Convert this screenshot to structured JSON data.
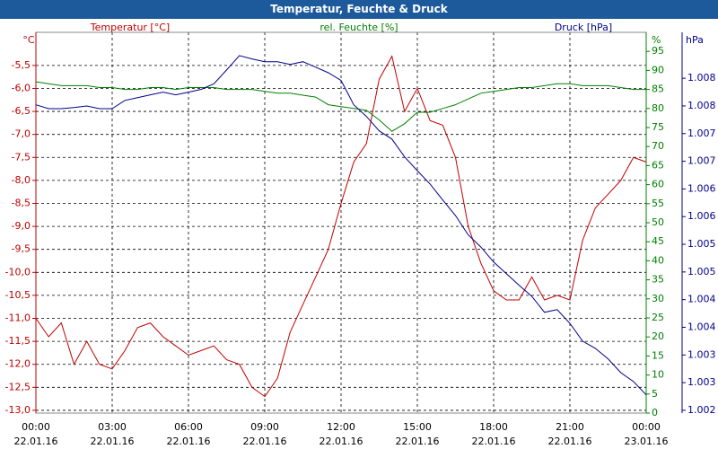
{
  "chart_data": {
    "type": "line",
    "title": "Temperatur, Feuchte & Druck",
    "x": [
      0,
      0.5,
      1,
      1.5,
      2,
      2.5,
      3,
      3.5,
      4,
      4.5,
      5,
      5.5,
      6,
      6.5,
      7,
      7.5,
      8,
      8.5,
      9,
      9.5,
      10,
      10.5,
      11,
      11.5,
      12,
      12.5,
      13,
      13.5,
      14,
      14.5,
      15,
      15.5,
      16,
      16.5,
      17,
      17.5,
      18,
      18.5,
      19,
      19.5,
      20,
      20.5,
      21,
      21.5,
      22,
      22.5,
      23,
      23.5,
      24
    ],
    "xlim": [
      0,
      24
    ],
    "xticks": [
      {
        "value": 0,
        "label": "00:00"
      },
      {
        "value": 3,
        "label": "03:00"
      },
      {
        "value": 6,
        "label": "06:00"
      },
      {
        "value": 9,
        "label": "09:00"
      },
      {
        "value": 12,
        "label": "12:00"
      },
      {
        "value": 15,
        "label": "15:00"
      },
      {
        "value": 18,
        "label": "18:00"
      },
      {
        "value": 21,
        "label": "21:00"
      },
      {
        "value": 24,
        "label": "00:00"
      }
    ],
    "xtick_dates": [
      "22.01.16",
      "22.01.16",
      "22.01.16",
      "22.01.16",
      "22.01.16",
      "22.01.16",
      "22.01.16",
      "22.01.16",
      "23.01.16"
    ],
    "series": [
      {
        "name": "Temperatur [°C]",
        "unit": "°C",
        "color": "#c00000",
        "axis": "y",
        "values": [
          -11.0,
          -11.4,
          -11.1,
          -12.0,
          -11.5,
          -12.0,
          -12.1,
          -11.7,
          -11.2,
          -11.1,
          -11.4,
          -11.6,
          -11.8,
          -11.7,
          -11.6,
          -11.9,
          -12.0,
          -12.5,
          -12.7,
          -12.3,
          -11.3,
          -10.7,
          -10.1,
          -9.5,
          -8.5,
          -7.6,
          -7.2,
          -5.8,
          -5.3,
          -6.5,
          -6.0,
          -6.7,
          -6.8,
          -7.5,
          -9.0,
          -9.8,
          -10.4,
          -10.6,
          -10.6,
          -10.1,
          -10.6,
          -10.5,
          -10.6,
          -9.3,
          -8.6,
          -8.3,
          -8.0,
          -7.5,
          -7.6
        ]
      },
      {
        "name": "rel. Feuchte [%]",
        "unit": "%",
        "color": "#008000",
        "axis": "y2",
        "values": [
          87,
          86.5,
          86,
          86,
          86,
          85.5,
          85.5,
          85,
          85,
          85.5,
          85.5,
          85,
          85.5,
          85.5,
          85.5,
          85,
          85,
          85,
          84.5,
          84,
          84,
          83.5,
          83,
          81,
          80.5,
          80,
          79.5,
          77,
          74,
          76,
          79,
          79,
          80,
          81,
          82.5,
          84,
          84.5,
          85,
          85.5,
          85.5,
          86,
          86.5,
          86.5,
          86,
          86,
          86,
          85.5,
          85,
          85
        ]
      },
      {
        "name": "Druck [hPa]",
        "unit": "hPa",
        "color": "#00008b",
        "axis": "y3",
        "values": [
          1007.52,
          1007.45,
          1007.45,
          1007.47,
          1007.5,
          1007.45,
          1007.45,
          1007.6,
          1007.65,
          1007.7,
          1007.75,
          1007.7,
          1007.75,
          1007.8,
          1007.9,
          1008.15,
          1008.41,
          1008.35,
          1008.3,
          1008.3,
          1008.25,
          1008.3,
          1008.2,
          1008.1,
          1007.96,
          1007.52,
          1007.31,
          1007.05,
          1006.9,
          1006.58,
          1006.33,
          1006.09,
          1005.8,
          1005.52,
          1005.17,
          1004.95,
          1004.68,
          1004.47,
          1004.26,
          1004.06,
          1003.77,
          1003.82,
          1003.57,
          1003.25,
          1003.12,
          1002.93,
          1002.68,
          1002.52,
          1002.28
        ]
      }
    ],
    "ylim": [
      -13.06,
      -4.78
    ],
    "yticks": [
      {
        "value": -5.5,
        "label": "-5,5"
      },
      {
        "value": -6,
        "label": "-6,0"
      },
      {
        "value": -6.5,
        "label": "-6,5"
      },
      {
        "value": -7,
        "label": "-7,0"
      },
      {
        "value": -7.5,
        "label": "-7,5"
      },
      {
        "value": -8,
        "label": "-8,0"
      },
      {
        "value": -8.5,
        "label": "-8,5"
      },
      {
        "value": -9,
        "label": "-9,0"
      },
      {
        "value": -9.5,
        "label": "-9,5"
      },
      {
        "value": -10,
        "label": "-10,0"
      },
      {
        "value": -10.5,
        "label": "-10,5"
      },
      {
        "value": -11,
        "label": "-11,0"
      },
      {
        "value": -11.5,
        "label": "-11,5"
      },
      {
        "value": -12,
        "label": "-12,0"
      },
      {
        "value": -12.5,
        "label": "-12,5"
      },
      {
        "value": -13,
        "label": "-13,0"
      }
    ],
    "y2lim": [
      0,
      100
    ],
    "y2ticks": [
      0,
      5,
      10,
      15,
      20,
      25,
      30,
      35,
      40,
      45,
      50,
      55,
      60,
      65,
      70,
      75,
      80,
      85,
      90,
      95
    ],
    "y3lim": [
      1001.95,
      1008.83
    ],
    "y3ticks": [
      {
        "value": 1002,
        "label": "1.002"
      },
      {
        "value": 1002.5,
        "label": "1.003"
      },
      {
        "value": 1003,
        "label": "1.003"
      },
      {
        "value": 1003.5,
        "label": "1.004"
      },
      {
        "value": 1004,
        "label": "1.004"
      },
      {
        "value": 1004.5,
        "label": "1.005"
      },
      {
        "value": 1005,
        "label": "1.005"
      },
      {
        "value": 1005.5,
        "label": "1.006"
      },
      {
        "value": 1006,
        "label": "1.006"
      },
      {
        "value": 1006.5,
        "label": "1.007"
      },
      {
        "value": 1007,
        "label": "1.007"
      },
      {
        "value": 1007.5,
        "label": "1.008"
      },
      {
        "value": 1008,
        "label": "1.008"
      }
    ],
    "grid": true
  }
}
